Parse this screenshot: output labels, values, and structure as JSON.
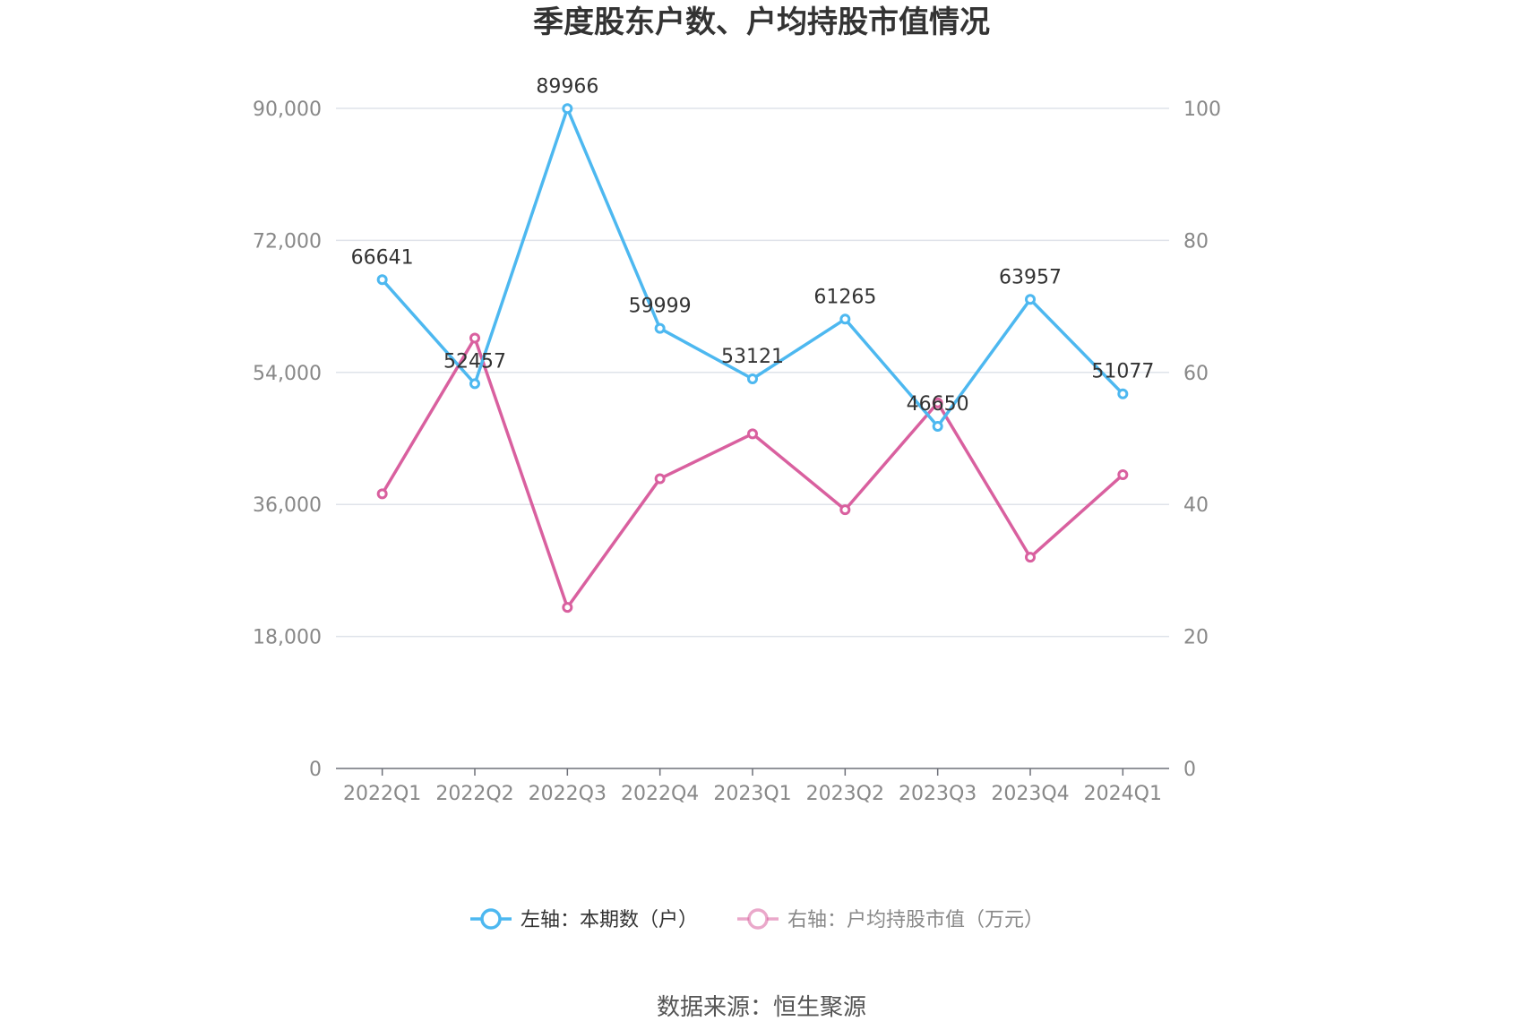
{
  "chart_data": {
    "type": "line",
    "title": "季度股东户数、户均持股市值情况",
    "categories": [
      "2022Q1",
      "2022Q2",
      "2022Q3",
      "2022Q4",
      "2023Q1",
      "2023Q2",
      "2023Q3",
      "2023Q4",
      "2024Q1"
    ],
    "y_left": {
      "ticks": [
        "0",
        "18,000",
        "36,000",
        "54,000",
        "72,000",
        "90,000"
      ],
      "range": [
        0,
        90000
      ]
    },
    "y_right": {
      "ticks": [
        "0",
        "20",
        "40",
        "60",
        "80",
        "100"
      ],
      "range": [
        0,
        100
      ]
    },
    "series": [
      {
        "name": "左轴：本期数（户）",
        "axis": "left",
        "color": "#4db8f0",
        "values": [
          66641,
          52457,
          89966,
          59999,
          53121,
          61265,
          46650,
          63957,
          51077
        ],
        "labels": [
          "66641",
          "52457",
          "89966",
          "59999",
          "53121",
          "61265",
          "46650",
          "63957",
          "51077"
        ]
      },
      {
        "name": "右轴：户均持股市值（万元）",
        "axis": "right",
        "color": "#d9609f",
        "values": [
          41.6,
          65.2,
          24.4,
          43.9,
          50.7,
          39.2,
          55.4,
          32.0,
          44.5
        ]
      }
    ],
    "grid": true,
    "legend_position": "bottom"
  },
  "footer": {
    "source": "数据来源：恒生聚源"
  }
}
